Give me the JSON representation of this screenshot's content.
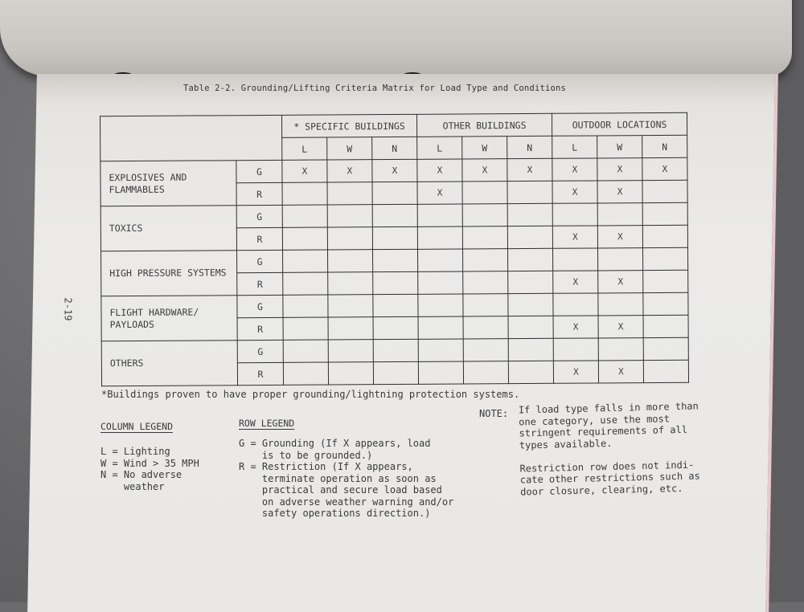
{
  "page_number": "2-19",
  "table": {
    "title": "Table 2-2.  Grounding/Lifting Criteria Matrix for Load Type and Conditions",
    "groups": [
      "* SPECIFIC BUILDINGS",
      "OTHER BUILDINGS",
      "OUTDOOR LOCATIONS"
    ],
    "subcolumns": [
      "L",
      "W",
      "N",
      "L",
      "W",
      "N",
      "L",
      "W",
      "N"
    ],
    "rows": [
      {
        "category": "EXPLOSIVES AND FLAMMABLES",
        "G": [
          "X",
          "X",
          "X",
          "X",
          "X",
          "X",
          "X",
          "X",
          "X"
        ],
        "R": [
          "",
          "",
          "",
          "X",
          "",
          "",
          "X",
          "X",
          ""
        ]
      },
      {
        "category": "TOXICS",
        "G": [
          "",
          "",
          "",
          "",
          "",
          "",
          "",
          "",
          ""
        ],
        "R": [
          "",
          "",
          "",
          "",
          "",
          "",
          "X",
          "X",
          ""
        ]
      },
      {
        "category": "HIGH PRESSURE SYSTEMS",
        "G": [
          "",
          "",
          "",
          "",
          "",
          "",
          "",
          "",
          ""
        ],
        "R": [
          "",
          "",
          "",
          "",
          "",
          "",
          "X",
          "X",
          ""
        ]
      },
      {
        "category": "FLIGHT HARDWARE/ PAYLOADS",
        "G": [
          "",
          "",
          "",
          "",
          "",
          "",
          "",
          "",
          ""
        ],
        "R": [
          "",
          "",
          "",
          "",
          "",
          "",
          "X",
          "X",
          ""
        ]
      },
      {
        "category": "OTHERS",
        "G": [
          "",
          "",
          "",
          "",
          "",
          "",
          "",
          "",
          ""
        ],
        "R": [
          "",
          "",
          "",
          "",
          "",
          "",
          "X",
          "X",
          ""
        ]
      }
    ],
    "row_codes": [
      "G",
      "R"
    ]
  },
  "footnote": "*Buildings proven to have proper grounding/lightning protection systems.",
  "column_legend": {
    "heading": "COLUMN LEGEND",
    "text": "L = Lighting\nW = Wind > 35 MPH\nN = No adverse\n    weather"
  },
  "row_legend": {
    "heading": "ROW LEGEND",
    "text": "G = Grounding (If X appears, load\n    is to be grounded.)\nR = Restriction (If X appears,\n    terminate operation as soon as\n    practical and secure load based\n    on adverse weather warning and/or\n    safety operations direction.)"
  },
  "note": {
    "label": "NOTE:",
    "text": "If load type falls in more than\none category, use the most\nstringent requirements of all\ntypes available.\n\nRestriction row does not indi-\ncate other restrictions such as\ndoor closure, clearing, etc."
  }
}
